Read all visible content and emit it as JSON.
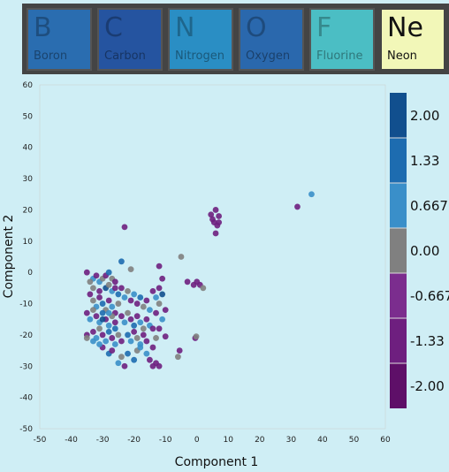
{
  "elements": [
    {
      "symbol": "B",
      "name": "Boron",
      "color": "#2a6db0",
      "selected": false
    },
    {
      "symbol": "C",
      "name": "Carbon",
      "color": "#2554a0",
      "selected": false
    },
    {
      "symbol": "N",
      "name": "Nitrogen",
      "color": "#2a8ec4",
      "selected": false
    },
    {
      "symbol": "O",
      "name": "Oxygen",
      "color": "#2a68ad",
      "selected": false
    },
    {
      "symbol": "F",
      "name": "Fluorine",
      "color": "#4bbec4",
      "selected": false
    },
    {
      "symbol": "Ne",
      "name": "Neon",
      "color": "#f2f7b8",
      "selected": true
    }
  ],
  "chart_data": {
    "type": "scatter",
    "xlabel": "Component 1",
    "ylabel": "Component 2",
    "xlim": [
      -50,
      60
    ],
    "ylim": [
      -50,
      60
    ],
    "xticks": [
      -50,
      -40,
      -30,
      -20,
      -10,
      0,
      10,
      20,
      30,
      40,
      50,
      60
    ],
    "yticks": [
      -50,
      -40,
      -30,
      -20,
      -10,
      0,
      10,
      20,
      30,
      40,
      50,
      60
    ],
    "colorbar": {
      "labels": [
        "2.00",
        "1.33",
        "0.667",
        "0.00",
        "-0.667",
        "-1.33",
        "-2.00"
      ],
      "colors": [
        "#114f8e",
        "#1d6cb0",
        "#3a8fc9",
        "#808080",
        "#7b2d8e",
        "#6e1f7f",
        "#5e0f68"
      ]
    },
    "points": [
      [
        36.5,
        25,
        0.9
      ],
      [
        32,
        21,
        -1.6
      ],
      [
        5,
        17,
        -1.6
      ],
      [
        6,
        20,
        -1.6
      ],
      [
        7,
        18,
        -1.3
      ],
      [
        6,
        12.5,
        -1.6
      ],
      [
        5.5,
        16,
        -1.3
      ],
      [
        6.5,
        15,
        -1.6
      ],
      [
        4.5,
        18.5,
        -1.3
      ],
      [
        7,
        16,
        -1.6
      ],
      [
        -23,
        14.5,
        -1.6
      ],
      [
        -12,
        2,
        -1.6
      ],
      [
        -5,
        5,
        0
      ],
      [
        -21,
        1,
        0
      ],
      [
        -24,
        3.5,
        1.3
      ],
      [
        -3,
        -3,
        -1.6
      ],
      [
        -1,
        -4,
        -1.3
      ],
      [
        1,
        -4,
        -1.6
      ],
      [
        2,
        -5,
        0
      ],
      [
        0,
        -3,
        -1.6
      ],
      [
        -0.5,
        -21,
        -1.6
      ],
      [
        -0.2,
        -20.5,
        0
      ],
      [
        -5.5,
        -25,
        -1.6
      ],
      [
        -6,
        -27,
        0
      ],
      [
        -10,
        -20.5,
        -1.3
      ],
      [
        -35,
        -20,
        -1.6
      ],
      [
        -33,
        -22,
        0.7
      ],
      [
        -35,
        -21,
        0
      ],
      [
        -30,
        -24,
        -1.6
      ],
      [
        -31,
        -23,
        0.7
      ],
      [
        -28,
        -26,
        1.3
      ],
      [
        -27,
        -25,
        -1.3
      ],
      [
        -25,
        -29,
        0.7
      ],
      [
        -23,
        -30,
        -1.6
      ],
      [
        -20,
        -28,
        1.3
      ],
      [
        -15,
        -28,
        -1.6
      ],
      [
        -14,
        -30,
        -1.6
      ],
      [
        -13,
        -29,
        -1.3
      ],
      [
        -12,
        -30,
        -1.6
      ],
      [
        -16,
        -22,
        -1.6
      ],
      [
        -18,
        -23,
        0.7
      ],
      [
        -19,
        -25,
        0
      ],
      [
        -22,
        -26,
        1.3
      ],
      [
        -24,
        -27,
        0
      ],
      [
        -35,
        0,
        -1.6
      ],
      [
        -33,
        -2,
        0.7
      ],
      [
        -34,
        -3,
        0
      ],
      [
        -32,
        -1,
        -1.3
      ],
      [
        -31,
        -3,
        0.7
      ],
      [
        -30,
        -2,
        0
      ],
      [
        -29,
        -1,
        -1.6
      ],
      [
        -28,
        0,
        1.3
      ],
      [
        -27,
        -2,
        0
      ],
      [
        -26,
        -3,
        -1.6
      ],
      [
        -34,
        -7,
        -1.6
      ],
      [
        -33,
        -9,
        0
      ],
      [
        -32,
        -11,
        0.7
      ],
      [
        -31,
        -8,
        -1.3
      ],
      [
        -30,
        -10,
        1.3
      ],
      [
        -29,
        -12,
        0
      ],
      [
        -28,
        -9,
        -1.6
      ],
      [
        -27,
        -11,
        0.7
      ],
      [
        -26,
        -13,
        -1.3
      ],
      [
        -25,
        -10,
        0
      ],
      [
        -35,
        -13,
        -1.6
      ],
      [
        -34,
        -15,
        0.7
      ],
      [
        -33,
        -12,
        0
      ],
      [
        -32,
        -14,
        -1.6
      ],
      [
        -31,
        -16,
        0.7
      ],
      [
        -30,
        -13,
        1.3
      ],
      [
        -29,
        -15,
        -1.3
      ],
      [
        -28,
        -17,
        0.7
      ],
      [
        -27,
        -14,
        0
      ],
      [
        -26,
        -16,
        -1.6
      ],
      [
        -33,
        -19,
        -1.6
      ],
      [
        -32,
        -21,
        0.7
      ],
      [
        -31,
        -18,
        0
      ],
      [
        -30,
        -20,
        -1.3
      ],
      [
        -29,
        -22,
        0.7
      ],
      [
        -28,
        -19,
        1.3
      ],
      [
        -27,
        -21,
        -1.6
      ],
      [
        -26,
        -23,
        0.7
      ],
      [
        -25,
        -20,
        0
      ],
      [
        -24,
        -22,
        -1.3
      ],
      [
        -24,
        -5,
        -1.6
      ],
      [
        -23,
        -8,
        0.7
      ],
      [
        -22,
        -6,
        0
      ],
      [
        -21,
        -9,
        -1.3
      ],
      [
        -20,
        -7,
        0.7
      ],
      [
        -19,
        -10,
        -1.6
      ],
      [
        -18,
        -8,
        1.3
      ],
      [
        -17,
        -11,
        0
      ],
      [
        -16,
        -9,
        -1.6
      ],
      [
        -15,
        -12,
        0.7
      ],
      [
        -24,
        -14,
        -1.6
      ],
      [
        -23,
        -16,
        0.7
      ],
      [
        -22,
        -13,
        0
      ],
      [
        -21,
        -15,
        -1.3
      ],
      [
        -20,
        -17,
        1.3
      ],
      [
        -19,
        -14,
        -1.6
      ],
      [
        -18,
        -16,
        0.7
      ],
      [
        -17,
        -18,
        0
      ],
      [
        -16,
        -15,
        -1.6
      ],
      [
        -15,
        -17,
        0.7
      ],
      [
        -14,
        -6,
        -1.6
      ],
      [
        -13,
        -8,
        0.7
      ],
      [
        -12,
        -5,
        -1.3
      ],
      [
        -11,
        -7,
        1.9
      ],
      [
        -11,
        -2,
        -1.6
      ],
      [
        -12,
        -10,
        0
      ],
      [
        -13,
        -13,
        -1.6
      ],
      [
        -11,
        -15,
        0.7
      ],
      [
        -12,
        -18,
        -1.6
      ],
      [
        -10,
        -12,
        -1.3
      ],
      [
        -22,
        -20,
        1.3
      ],
      [
        -21,
        -22,
        0.7
      ],
      [
        -20,
        -19,
        -1.6
      ],
      [
        -19,
        -21,
        0
      ],
      [
        -18,
        -24,
        0.7
      ],
      [
        -17,
        -20,
        -1.3
      ],
      [
        -16,
        -26,
        0.7
      ],
      [
        -14,
        -24,
        -1.6
      ],
      [
        -13,
        -21,
        0
      ],
      [
        -14,
        -18,
        -1.3
      ],
      [
        -29,
        -5,
        1.9
      ],
      [
        -27,
        -6,
        0.7
      ],
      [
        -25,
        -7,
        1.3
      ],
      [
        -28,
        -4,
        0
      ],
      [
        -26,
        -5,
        -1.6
      ],
      [
        -33,
        -5,
        0
      ],
      [
        -31,
        -6,
        -1.3
      ],
      [
        -30,
        -15,
        1.9
      ],
      [
        -28,
        -13,
        0.7
      ],
      [
        -26,
        -18,
        1.3
      ]
    ]
  }
}
